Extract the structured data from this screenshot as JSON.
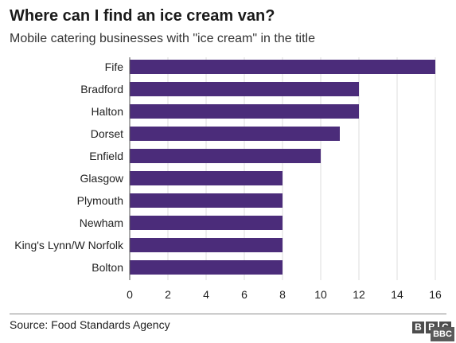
{
  "header": {
    "title": "Where can I find an ice cream van?",
    "subtitle": "Mobile catering businesses with \"ice cream\" in the title"
  },
  "footer": {
    "source": "Source: Food Standards Agency",
    "logo_letters": [
      "B",
      "B",
      "C"
    ],
    "watermark": "BBC"
  },
  "colors": {
    "bar": "#4b2c7a",
    "grid": "#dcdcdc",
    "axis": "#555555"
  },
  "chart_data": {
    "type": "bar",
    "orientation": "horizontal",
    "categories": [
      "Fife",
      "Bradford",
      "Halton",
      "Dorset",
      "Enfield",
      "Glasgow",
      "Plymouth",
      "Newham",
      "King's Lynn/W Norfolk",
      "Bolton"
    ],
    "values": [
      16,
      12,
      12,
      11,
      10,
      8,
      8,
      8,
      8,
      8
    ],
    "xlim": [
      0,
      16
    ],
    "xticks": [
      0,
      2,
      4,
      6,
      8,
      10,
      12,
      14,
      16
    ],
    "grid": true,
    "legend": "none"
  }
}
